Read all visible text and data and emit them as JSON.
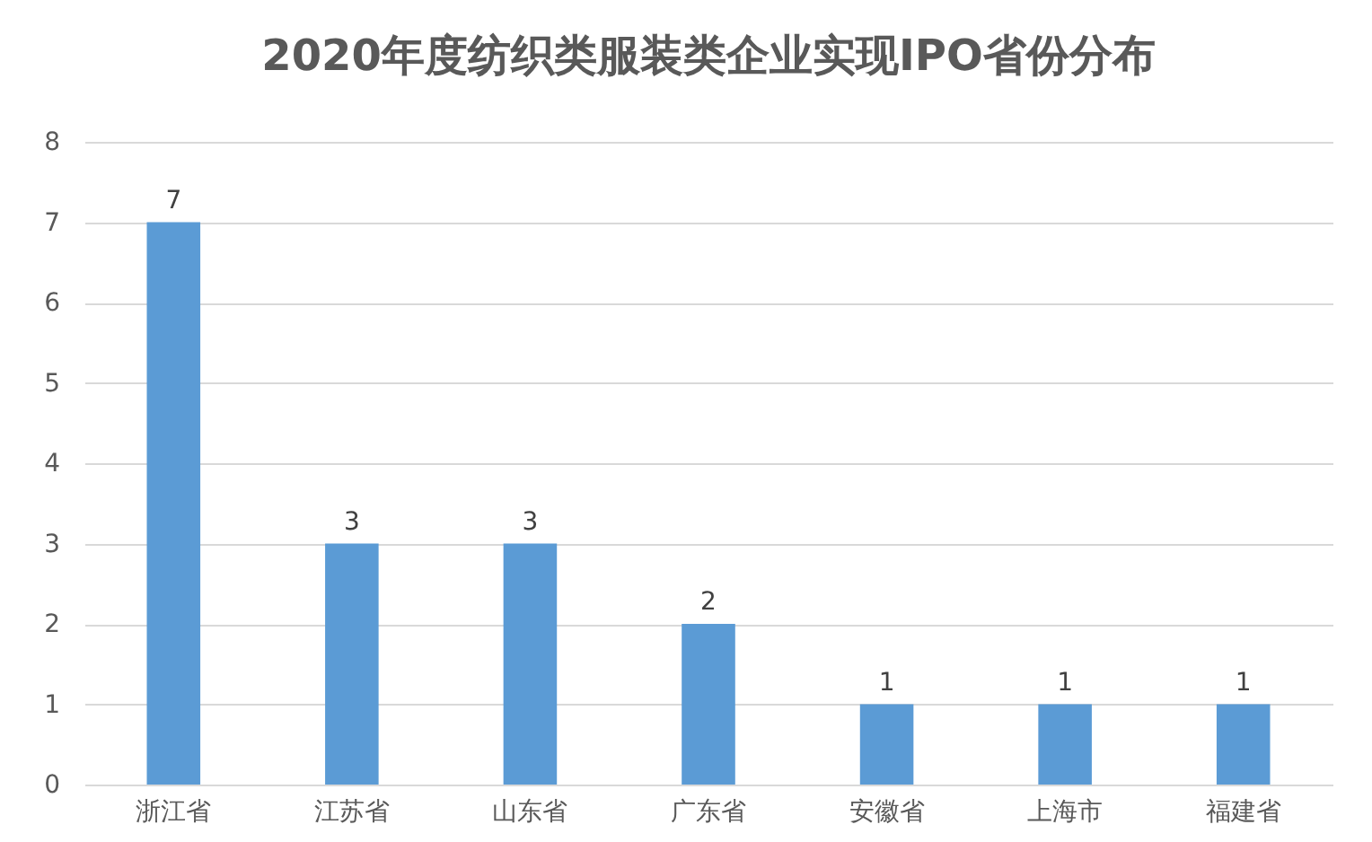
{
  "chart_data": {
    "type": "bar",
    "title": "2020年度纺织类服装类企业实现IPO省份分布",
    "categories": [
      "浙江省",
      "江苏省",
      "山东省",
      "广东省",
      "安徽省",
      "上海市",
      "福建省"
    ],
    "values": [
      7,
      3,
      3,
      2,
      1,
      1,
      1
    ],
    "color": "#5b9bd5",
    "ylim": [
      0,
      8
    ],
    "yticks": [
      0,
      1,
      2,
      3,
      4,
      5,
      6,
      7,
      8
    ],
    "grid": "y",
    "data_labels": true
  }
}
